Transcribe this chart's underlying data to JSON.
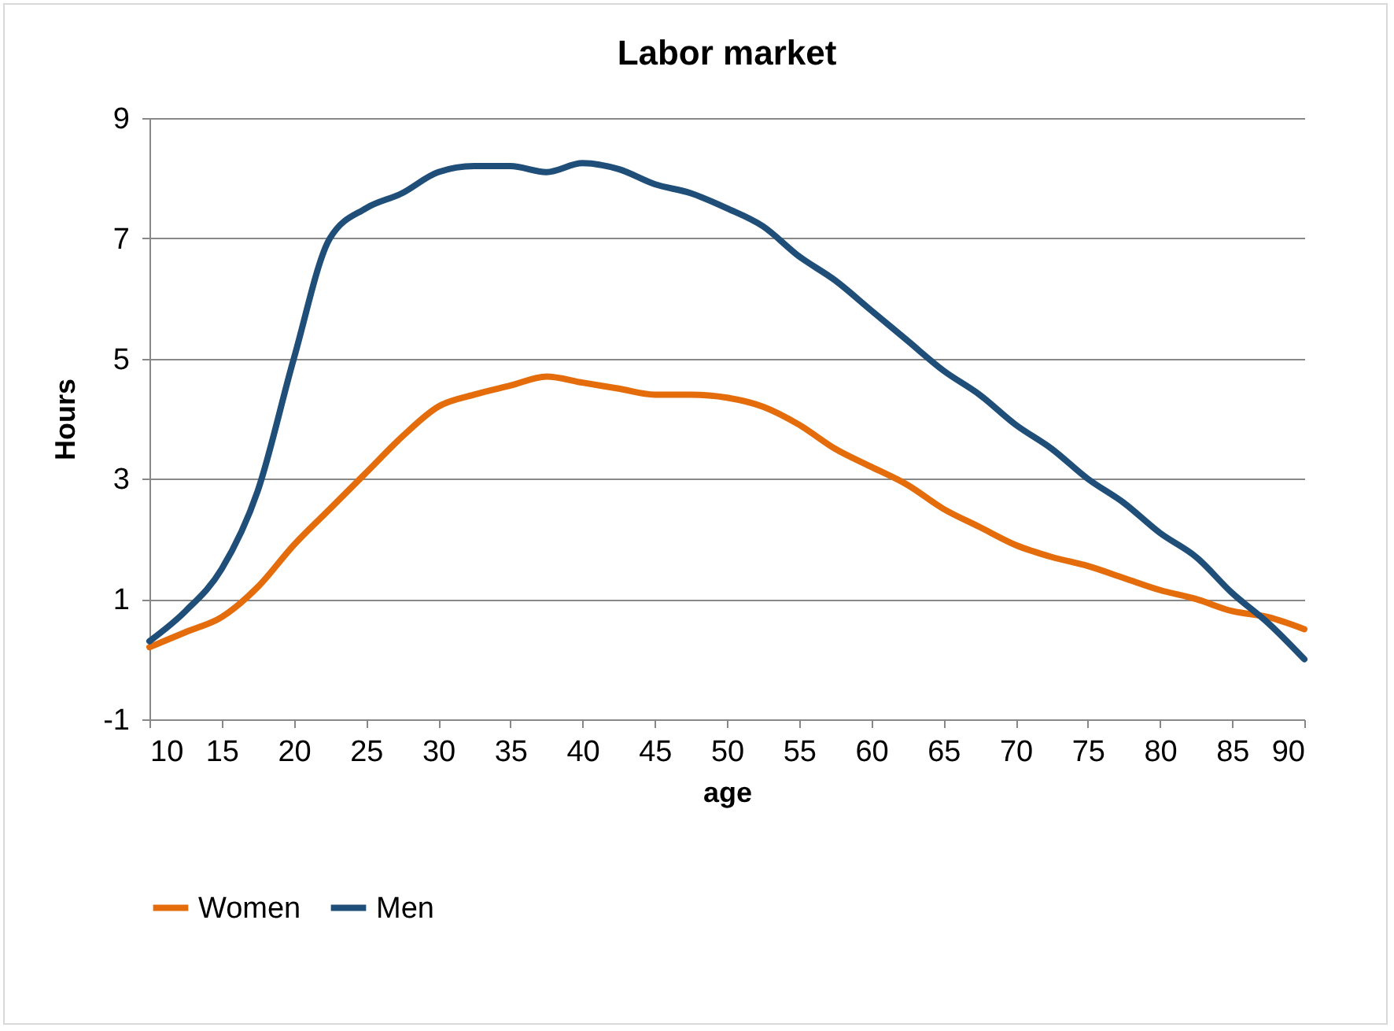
{
  "chart_data": {
    "type": "line",
    "title": "Labor market",
    "xlabel": "age",
    "ylabel": "Hours",
    "x": [
      10,
      12.5,
      15,
      17.5,
      20,
      22.5,
      25,
      27.5,
      30,
      32.5,
      35,
      37.5,
      40,
      42.5,
      45,
      47.5,
      50,
      52.5,
      55,
      57.5,
      60,
      62.5,
      65,
      67.5,
      70,
      72.5,
      75,
      77.5,
      80,
      82.5,
      85,
      87.5,
      90
    ],
    "series": [
      {
        "name": "Women",
        "color": "#e46c0a",
        "values": [
          0.2,
          0.45,
          0.7,
          1.2,
          1.9,
          2.5,
          3.1,
          3.7,
          4.2,
          4.4,
          4.55,
          4.7,
          4.6,
          4.5,
          4.4,
          4.4,
          4.35,
          4.2,
          3.9,
          3.5,
          3.2,
          2.9,
          2.5,
          2.2,
          1.9,
          1.7,
          1.55,
          1.35,
          1.15,
          1.0,
          0.8,
          0.7,
          0.5
        ]
      },
      {
        "name": "Men",
        "color": "#1f4e79",
        "values": [
          0.3,
          0.8,
          1.5,
          2.8,
          5.0,
          7.0,
          7.5,
          7.75,
          8.1,
          8.2,
          8.2,
          8.1,
          8.25,
          8.15,
          7.9,
          7.75,
          7.5,
          7.2,
          6.7,
          6.3,
          5.8,
          5.3,
          4.8,
          4.4,
          3.9,
          3.5,
          3.0,
          2.6,
          2.1,
          1.7,
          1.1,
          0.6,
          0.0
        ]
      }
    ],
    "xlim": [
      10,
      90
    ],
    "xticks": [
      10,
      15,
      20,
      25,
      30,
      35,
      40,
      45,
      50,
      55,
      60,
      65,
      70,
      75,
      80,
      85,
      90
    ],
    "ylim": [
      -1,
      9
    ],
    "yticks": [
      -1,
      1,
      3,
      5,
      7,
      9
    ],
    "grid": "y",
    "legend": "bottom",
    "marker": "none",
    "line_style": "solid"
  }
}
